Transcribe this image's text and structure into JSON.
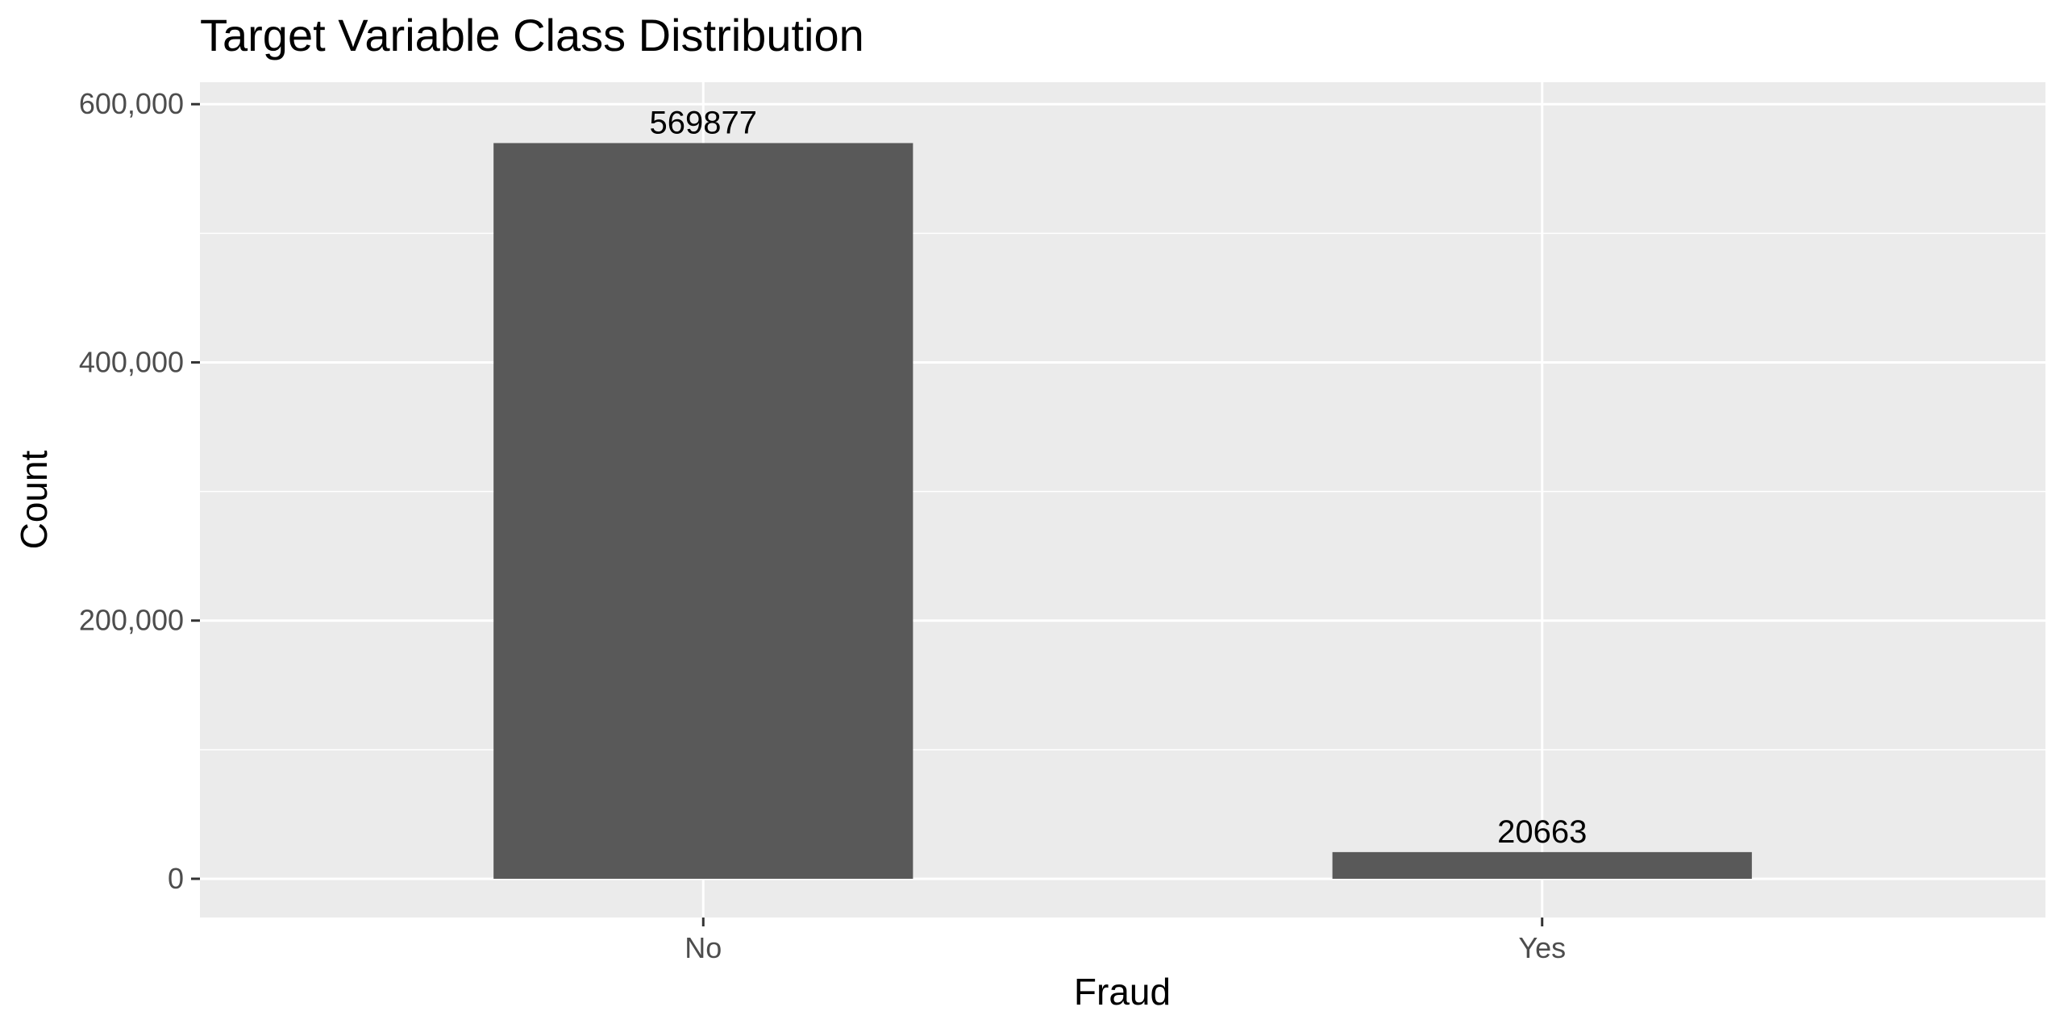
{
  "chart_data": {
    "type": "bar",
    "title": "Target Variable Class Distribution",
    "xlabel": "Fraud",
    "ylabel": "Count",
    "categories": [
      "No",
      "Yes"
    ],
    "values": [
      569877,
      20663
    ],
    "data_labels": [
      "569877",
      "20663"
    ],
    "ylim": [
      -30000,
      617000
    ],
    "y_ticks": [
      0,
      200000,
      400000,
      600000
    ],
    "y_tick_labels": [
      "0",
      "200,000",
      "400,000",
      "600,000"
    ],
    "y_minor_ticks": [
      100000,
      300000,
      500000
    ],
    "grid": true,
    "legend": "none",
    "colors": {
      "bar": "#595959",
      "panel_background": "#ebebeb",
      "grid_major": "#ffffff",
      "grid_minor": "#ffffff",
      "tick_text": "#4d4d4d",
      "axis_tick": "#333333"
    }
  }
}
